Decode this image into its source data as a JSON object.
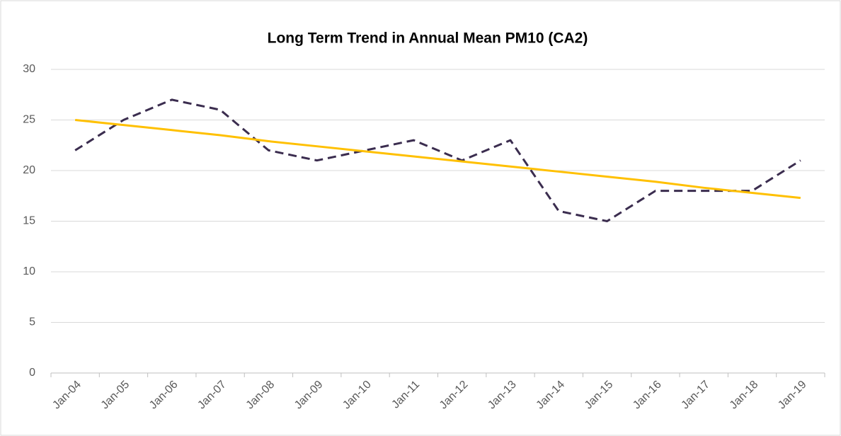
{
  "chart_data": {
    "type": "line",
    "title": "Long Term Trend in Annual Mean PM10 (CA2)",
    "categories": [
      "Jan-04",
      "Jan-05",
      "Jan-06",
      "Jan-07",
      "Jan-08",
      "Jan-09",
      "Jan-10",
      "Jan-11",
      "Jan-12",
      "Jan-13",
      "Jan-14",
      "Jan-15",
      "Jan-16",
      "Jan-17",
      "Jan-18",
      "Jan-19"
    ],
    "series": [
      {
        "color": "#3b2d4f",
        "dashed": true,
        "values": [
          22,
          25,
          27,
          26,
          22,
          21,
          22,
          23,
          21,
          23,
          16,
          15,
          18,
          18,
          18,
          21
        ]
      },
      {
        "color": "#ffc000",
        "dashed": false,
        "values": [
          25,
          24.5,
          24.0,
          23.5,
          22.9,
          22.4,
          21.9,
          21.4,
          20.9,
          20.4,
          19.9,
          19.4,
          18.9,
          18.3,
          17.8,
          17.3
        ]
      }
    ],
    "ylim": [
      0,
      30
    ],
    "yticks": [
      0,
      5,
      10,
      15,
      20,
      25,
      30
    ],
    "grid": true
  }
}
